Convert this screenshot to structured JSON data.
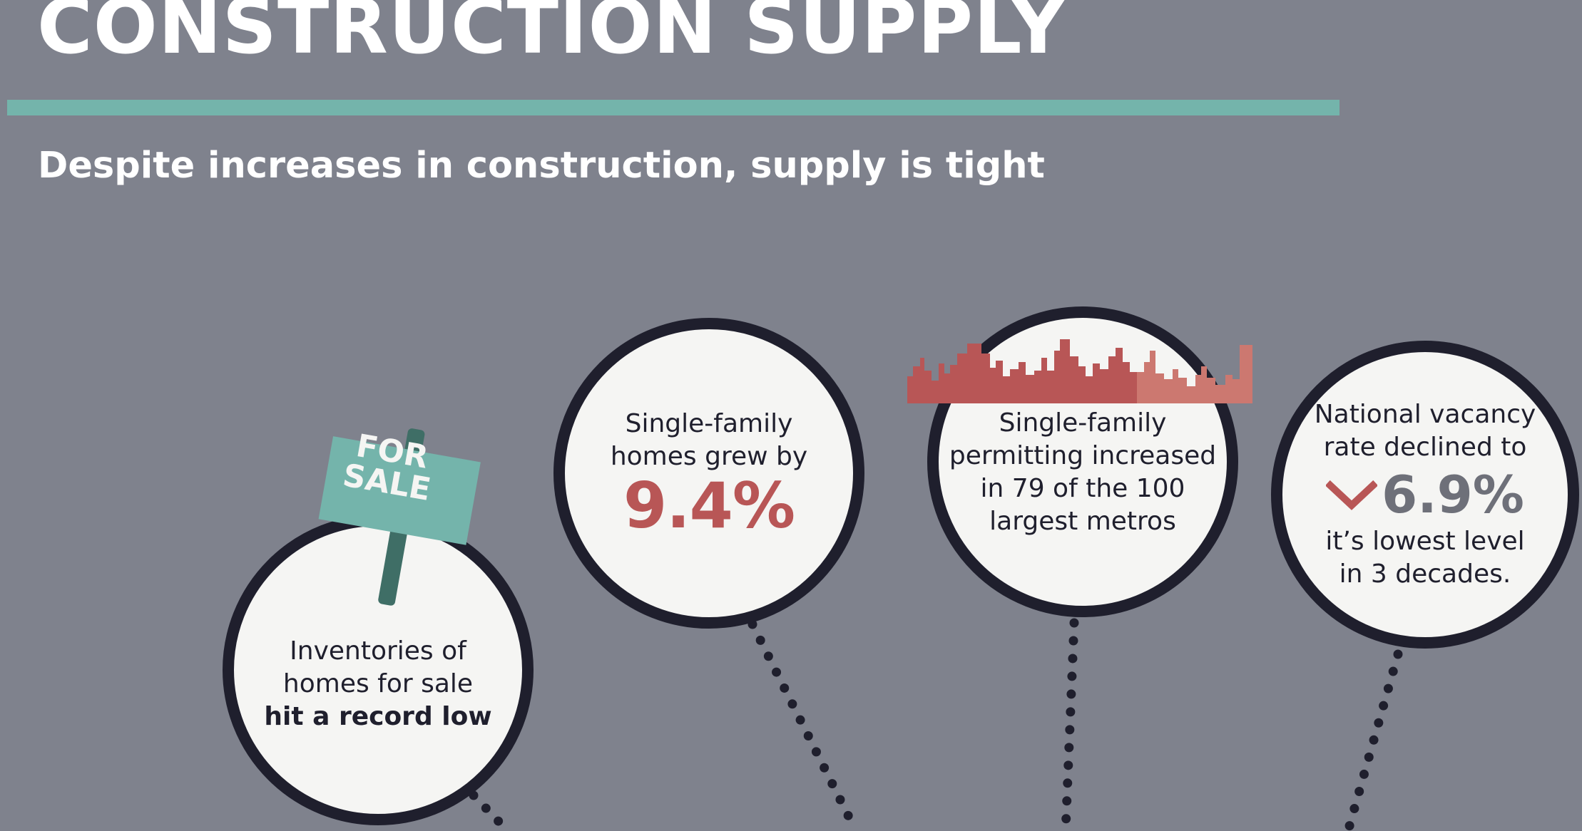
{
  "header": {
    "title": "CONSTRUCTION SUPPLY",
    "subtitle": "Despite increases in construction, supply is tight"
  },
  "colors": {
    "background": "#7f828d",
    "accent_teal": "#74b4ab",
    "circle_border": "#1f1f2d",
    "circle_fill": "#f5f5f3",
    "highlight_red": "#b85656",
    "highlight_gray": "#6e7079"
  },
  "stats": {
    "inventory": {
      "icon": "for-sale-sign-icon",
      "sign_line1": "FOR",
      "sign_line2": "SALE",
      "line1": "Inventories of",
      "line2": "homes for sale",
      "line3_bold": "hit a record low"
    },
    "growth": {
      "line1": "Single-family",
      "line2": "homes grew by",
      "value": "9.4%"
    },
    "permitting": {
      "icon": "city-skyline-icon",
      "line1": "Single-family",
      "line2": "permitting increased",
      "line3": "in 79 of the 100",
      "line4": "largest metros"
    },
    "vacancy": {
      "icon": "down-arrow-icon",
      "line1": "National vacancy",
      "line2": "rate declined to",
      "value": "6.9%",
      "line3": "it’s lowest level",
      "line4": "in 3 decades."
    }
  }
}
